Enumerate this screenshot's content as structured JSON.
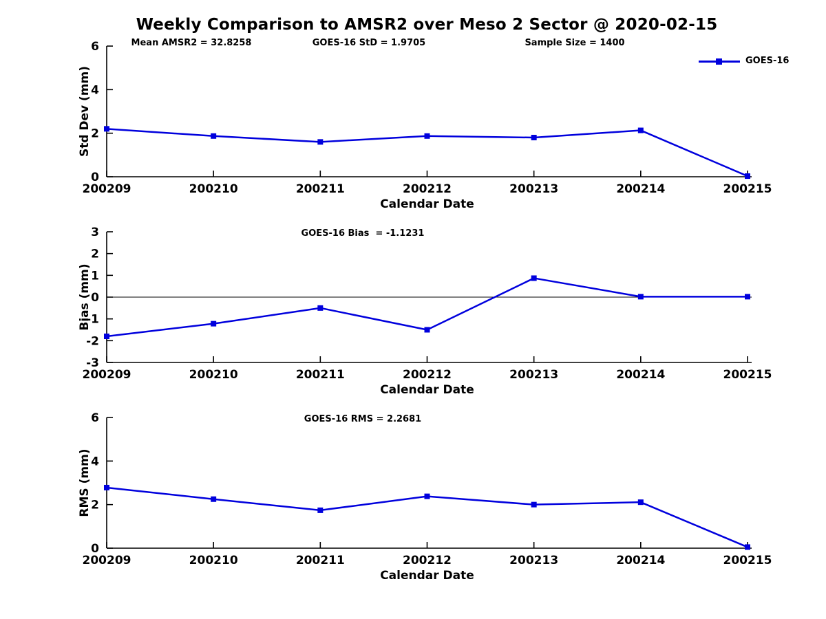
{
  "header": {
    "title": "Weekly Comparison to AMSR2 over Meso 2 Sector @ 2020-02-15",
    "stats": [
      {
        "label": "Mean AMSR2 = 32.8258"
      },
      {
        "label": "GOES-16 StD = 1.9705"
      },
      {
        "label": "Sample Size = 1400"
      }
    ],
    "legend": {
      "label": "GOES-16",
      "marker": "square-icon"
    }
  },
  "colors": {
    "line": "#0000dd",
    "axis": "#000000",
    "background": "#ffffff"
  },
  "chart_data": [
    {
      "type": "line",
      "name": "std-dev",
      "annotation": "",
      "ylabel": "Std Dev (mm)",
      "xlabel": "Calendar Date",
      "categories": [
        "200209",
        "200210",
        "200211",
        "200212",
        "200213",
        "200214",
        "200215"
      ],
      "series": [
        {
          "name": "GOES-16",
          "values": [
            2.2,
            1.87,
            1.6,
            1.87,
            1.8,
            2.13,
            0.03
          ]
        }
      ],
      "ylim": [
        0,
        6
      ],
      "yticks": [
        0,
        2,
        4,
        6
      ],
      "zero_line": false,
      "grid": false,
      "legend_position": "top-right-above-axes"
    },
    {
      "type": "line",
      "name": "bias",
      "annotation": "GOES-16 Bias  = -1.1231",
      "ylabel": "Bias (mm)",
      "xlabel": "Calendar Date",
      "categories": [
        "200209",
        "200210",
        "200211",
        "200212",
        "200213",
        "200214",
        "200215"
      ],
      "series": [
        {
          "name": "GOES-16",
          "values": [
            -1.8,
            -1.22,
            -0.5,
            -1.5,
            0.87,
            0.02,
            0.02
          ]
        }
      ],
      "ylim": [
        -3,
        3
      ],
      "yticks": [
        3,
        2,
        1,
        0,
        -1,
        -2,
        -3
      ],
      "zero_line": true,
      "grid": false
    },
    {
      "type": "line",
      "name": "rms",
      "annotation": "GOES-16 RMS = 2.2681",
      "ylabel": "RMS (mm)",
      "xlabel": "Calendar Date",
      "categories": [
        "200209",
        "200210",
        "200211",
        "200212",
        "200213",
        "200214",
        "200215"
      ],
      "series": [
        {
          "name": "GOES-16",
          "values": [
            2.78,
            2.25,
            1.74,
            2.38,
            2.0,
            2.11,
            0.05
          ]
        }
      ],
      "ylim": [
        0,
        6
      ],
      "yticks": [
        0,
        2,
        4,
        6
      ],
      "zero_line": false,
      "grid": false
    }
  ]
}
